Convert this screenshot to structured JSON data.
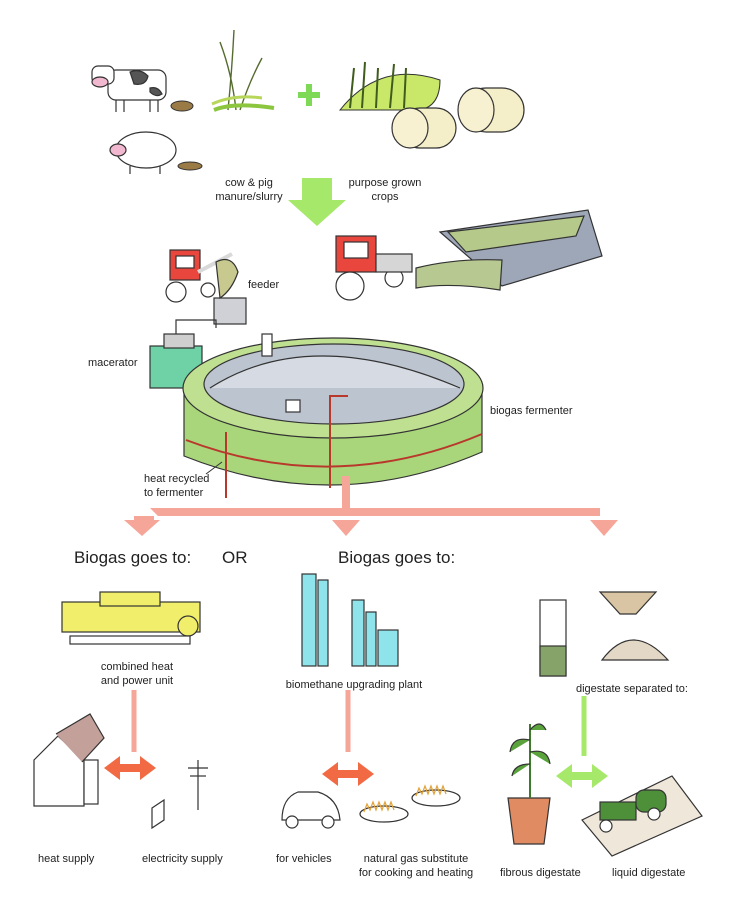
{
  "labels": {
    "manure": "cow & pig\nmanure/slurry",
    "crops": "purpose grown\ncrops",
    "feeder": "feeder",
    "macerator": "macerator",
    "fermenter": "biogas fermenter",
    "heat_recycled": "heat recycled\nto fermenter",
    "biogas_left": "Biogas goes to:",
    "or": "OR",
    "biogas_right": "Biogas goes to:",
    "chp": "combined heat\nand power unit",
    "upgrading": "biomethane upgrading plant",
    "digestate_separated": "digestate separated to:",
    "heat_supply": "heat supply",
    "electricity_supply": "electricity supply",
    "vehicles": "for vehicles",
    "gas_substitute": "natural gas substitute\nfor cooking and heating",
    "fibrous": "fibrous digestate",
    "liquid": "liquid digestate"
  },
  "colors": {
    "green_arrow": "#a6e86a",
    "salmon_arrow": "#f5a698",
    "orange_arrow": "#f26a43",
    "tank_green": "#a9d67b",
    "pipe_red": "#b8392c",
    "yellow_unit": "#f1ee6b",
    "cyan_plant": "#8fe3ea"
  }
}
